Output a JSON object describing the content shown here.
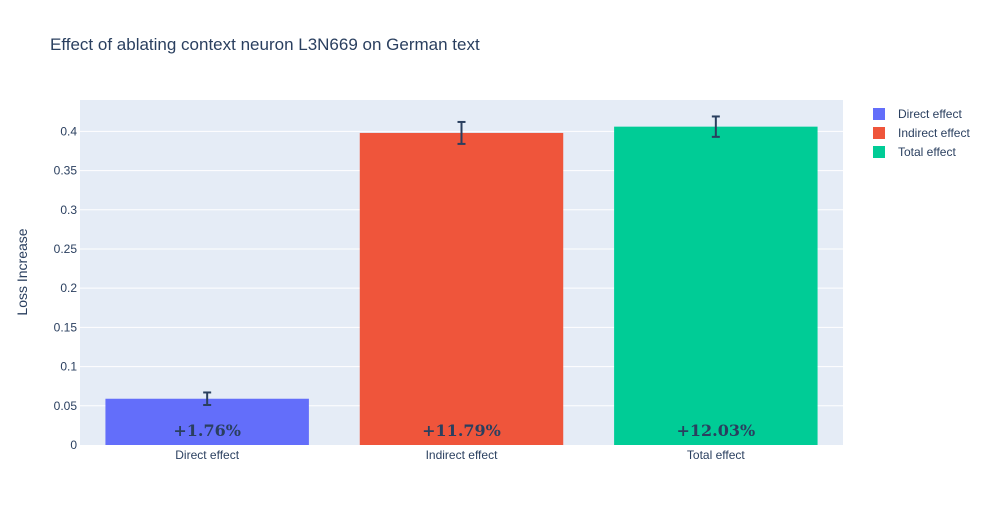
{
  "chart_data": {
    "type": "bar",
    "title": "Effect of ablating context neuron L3N669 on German text",
    "xlabel": "",
    "ylabel": "Loss Increase",
    "ylim": [
      0,
      0.44
    ],
    "yticks": [
      0,
      0.05,
      0.1,
      0.15,
      0.2,
      0.25,
      0.3,
      0.35,
      0.4
    ],
    "ytick_labels": [
      "0",
      "0.05",
      "0.1",
      "0.15",
      "0.2",
      "0.25",
      "0.3",
      "0.35",
      "0.4"
    ],
    "categories": [
      "Direct effect",
      "Indirect effect",
      "Total effect"
    ],
    "values": [
      0.059,
      0.398,
      0.406
    ],
    "error": [
      0.008,
      0.014,
      0.013
    ],
    "bar_labels": [
      "+1.76%",
      "+11.79%",
      "+12.03%"
    ],
    "colors": [
      "#636efa",
      "#ef553b",
      "#00cc96"
    ],
    "grid": true,
    "legend": {
      "placement": "top-right",
      "entries": [
        "Direct effect",
        "Indirect effect",
        "Total effect"
      ]
    }
  }
}
